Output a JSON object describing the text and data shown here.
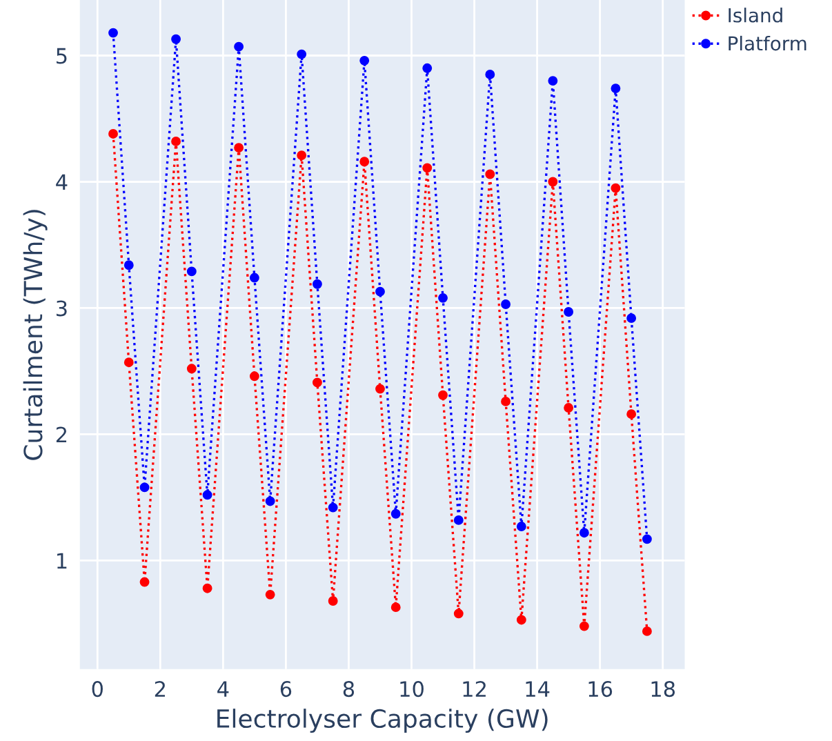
{
  "chart_data": {
    "type": "line",
    "xlabel": "Electrolyser Capacity (GW)",
    "ylabel": "Curtailment (TWh/y)",
    "x": [
      0.5,
      1,
      1.5,
      2.5,
      3,
      3.5,
      4.5,
      5,
      5.5,
      6.5,
      7,
      7.5,
      8.5,
      9,
      9.5,
      10.5,
      11,
      11.5,
      12.5,
      13,
      13.5,
      14.5,
      15,
      15.5,
      16.5,
      17,
      17.5
    ],
    "series": [
      {
        "name": "Island",
        "color": "#ff0000",
        "values": [
          4.38,
          2.57,
          0.83,
          4.32,
          2.52,
          0.78,
          4.27,
          2.46,
          0.73,
          4.21,
          2.41,
          0.68,
          4.16,
          2.36,
          0.63,
          4.11,
          2.31,
          0.58,
          4.06,
          2.26,
          0.53,
          4.0,
          2.21,
          0.48,
          3.95,
          2.16,
          0.44
        ]
      },
      {
        "name": "Platform",
        "color": "#0000ff",
        "values": [
          5.18,
          3.34,
          1.58,
          5.13,
          3.29,
          1.52,
          5.07,
          3.24,
          1.47,
          5.01,
          3.19,
          1.42,
          4.96,
          3.13,
          1.37,
          4.9,
          3.08,
          1.32,
          4.85,
          3.03,
          1.27,
          4.8,
          2.97,
          1.22,
          4.74,
          2.92,
          1.17
        ]
      }
    ],
    "xlim": [
      -0.56,
      18.7
    ],
    "ylim": [
      0.14,
      5.44
    ],
    "xticks": [
      0,
      2,
      4,
      6,
      8,
      10,
      12,
      14,
      16,
      18
    ],
    "yticks": [
      1,
      2,
      3,
      4,
      5
    ],
    "grid": true,
    "legend": "top right",
    "marker": "circle",
    "line_style": "dotted"
  }
}
